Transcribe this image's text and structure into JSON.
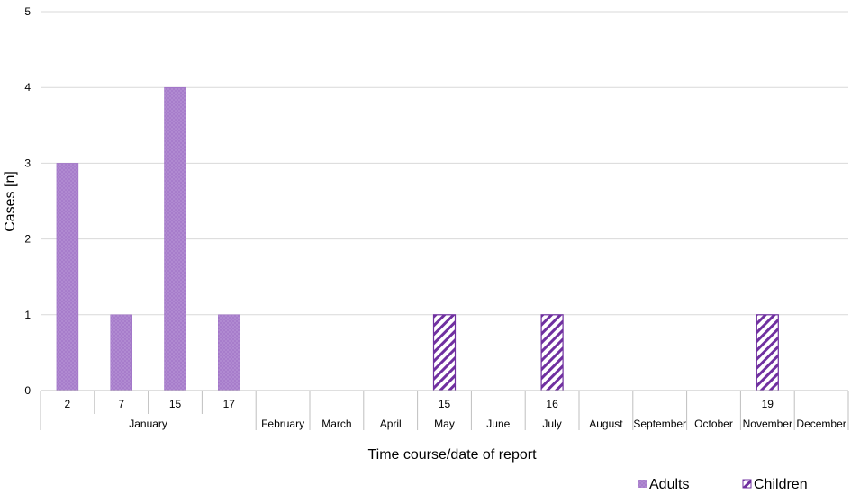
{
  "chart_data": {
    "type": "bar",
    "ylabel": "Cases [n]",
    "xlabel": "Time course/date of report",
    "ylim": [
      0,
      5
    ],
    "yticks": [
      "0",
      "1",
      "2",
      "3",
      "4",
      "5"
    ],
    "grid": true,
    "legend_position": "bottom-right",
    "slots": [
      {
        "day": "2",
        "month": "January"
      },
      {
        "day": "7",
        "month": "January"
      },
      {
        "day": "15",
        "month": "January"
      },
      {
        "day": "17",
        "month": "January"
      },
      {
        "day": "",
        "month": "February"
      },
      {
        "day": "",
        "month": "March"
      },
      {
        "day": "",
        "month": "April"
      },
      {
        "day": "15",
        "month": "May"
      },
      {
        "day": "",
        "month": "June"
      },
      {
        "day": "16",
        "month": "July"
      },
      {
        "day": "",
        "month": "August"
      },
      {
        "day": "",
        "month": "September"
      },
      {
        "day": "",
        "month": "October"
      },
      {
        "day": "19",
        "month": "November"
      },
      {
        "day": "",
        "month": "December"
      }
    ],
    "series": [
      {
        "name": "Adults",
        "pattern": "dotted-solid",
        "values": [
          3,
          1,
          4,
          1,
          0,
          0,
          0,
          0,
          0,
          0,
          0,
          0,
          0,
          0,
          0
        ]
      },
      {
        "name": "Children",
        "pattern": "diagonal-hatch",
        "values": [
          0,
          0,
          0,
          0,
          0,
          0,
          0,
          1,
          0,
          1,
          0,
          0,
          0,
          1,
          0
        ]
      }
    ],
    "colors": {
      "adults_fill": "#a77dcb",
      "adults_stroke": "#9a6bc4",
      "children_stroke": "#7030a0",
      "grid": "#d9d9d9",
      "axis": "#bfbfbf"
    }
  }
}
